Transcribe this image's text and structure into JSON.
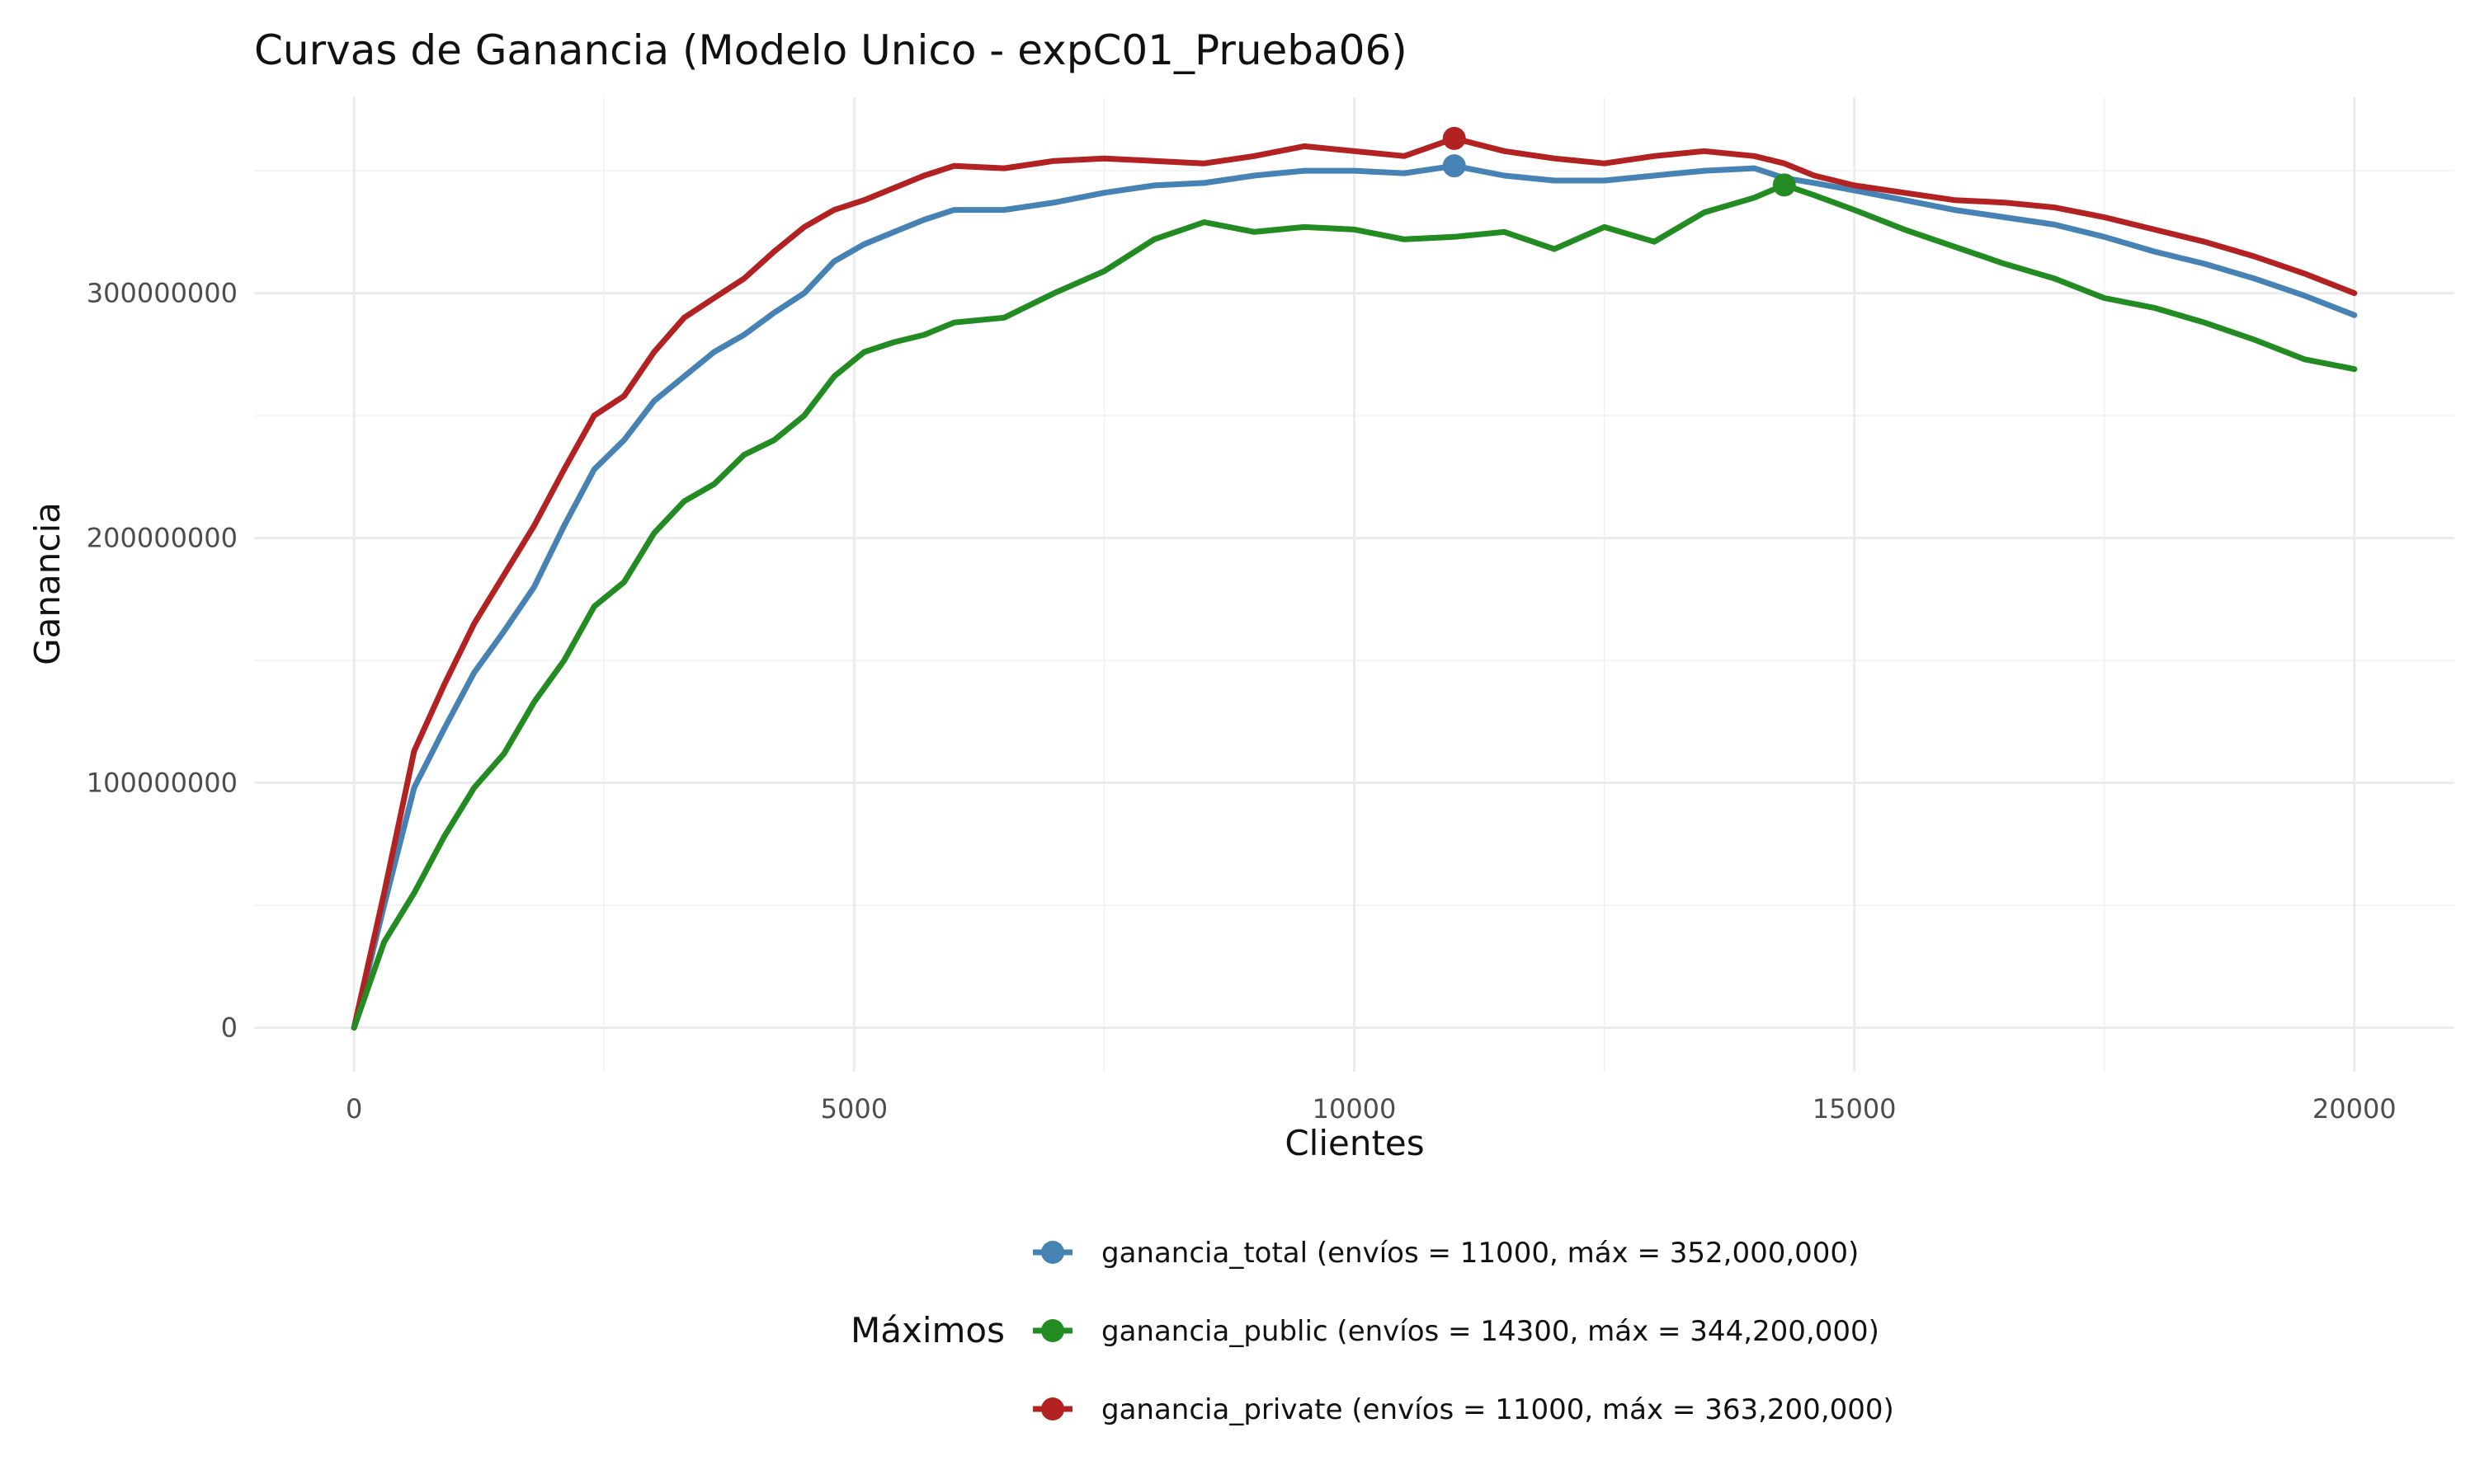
{
  "chart_data": {
    "type": "line",
    "title": "Curvas de Ganancia (Modelo Unico - expC01_Prueba06)",
    "xlabel": "Clientes",
    "ylabel": "Ganancia",
    "xlim": [
      -1000,
      21000
    ],
    "ylim": [
      -18000000,
      380000000
    ],
    "xticks": [
      0,
      5000,
      10000,
      15000,
      20000
    ],
    "xtick_labels": [
      "0",
      "5000",
      "10000",
      "15000",
      "20000"
    ],
    "yticks": [
      0,
      100000000,
      200000000,
      300000000
    ],
    "ytick_labels": [
      "0",
      "100000000",
      "200000000",
      "300000000"
    ],
    "grid": true,
    "legend": {
      "title": "Máximos",
      "placement": "bottom",
      "entries": [
        "ganancia_total (envíos = 11000, máx = 352,000,000)",
        "ganancia_public (envíos = 14300, máx = 344,200,000)",
        "ganancia_private (envíos = 11000, máx = 363,200,000)"
      ]
    },
    "series": [
      {
        "name": "ganancia_total",
        "color": "#4682b4",
        "max_point": {
          "x": 11000,
          "y": 352000000
        },
        "x": [
          0,
          300,
          600,
          900,
          1200,
          1500,
          1800,
          2100,
          2400,
          2700,
          3000,
          3300,
          3600,
          3900,
          4200,
          4500,
          4800,
          5100,
          5400,
          5700,
          6000,
          6500,
          7000,
          7500,
          8000,
          8500,
          9000,
          9500,
          10000,
          10500,
          11000,
          11500,
          12000,
          12500,
          13000,
          13500,
          14000,
          14300,
          14600,
          15000,
          15500,
          16000,
          16500,
          17000,
          17500,
          18000,
          18500,
          19000,
          19500,
          20000
        ],
        "y": [
          0,
          50000000,
          98000000,
          122000000,
          145000000,
          162000000,
          180000000,
          205000000,
          228000000,
          240000000,
          256000000,
          266000000,
          276000000,
          283000000,
          292000000,
          300000000,
          313000000,
          320000000,
          325000000,
          330000000,
          334000000,
          334000000,
          337000000,
          341000000,
          344000000,
          345000000,
          348000000,
          350000000,
          350000000,
          349000000,
          352000000,
          348000000,
          346000000,
          346000000,
          348000000,
          350000000,
          351000000,
          347000000,
          345000000,
          342000000,
          338000000,
          334000000,
          331000000,
          328000000,
          323000000,
          317000000,
          312000000,
          306000000,
          299000000,
          291000000
        ]
      },
      {
        "name": "ganancia_public",
        "color": "#228b22",
        "max_point": {
          "x": 14300,
          "y": 344200000
        },
        "x": [
          0,
          300,
          600,
          900,
          1200,
          1500,
          1800,
          2100,
          2400,
          2700,
          3000,
          3300,
          3600,
          3900,
          4200,
          4500,
          4800,
          5100,
          5400,
          5700,
          6000,
          6500,
          7000,
          7500,
          8000,
          8500,
          9000,
          9500,
          10000,
          10500,
          11000,
          11500,
          12000,
          12500,
          13000,
          13500,
          14000,
          14300,
          14600,
          15000,
          15500,
          16000,
          16500,
          17000,
          17500,
          18000,
          18500,
          19000,
          19500,
          20000
        ],
        "y": [
          0,
          35000000,
          55000000,
          78000000,
          98000000,
          112000000,
          133000000,
          150000000,
          172000000,
          182000000,
          202000000,
          215000000,
          222000000,
          234000000,
          240000000,
          250000000,
          266000000,
          276000000,
          280000000,
          283000000,
          288000000,
          290000000,
          300000000,
          309000000,
          322000000,
          329000000,
          325000000,
          327000000,
          326000000,
          322000000,
          323000000,
          325000000,
          318000000,
          327000000,
          321000000,
          333000000,
          339000000,
          344200000,
          340000000,
          334000000,
          326000000,
          319000000,
          312000000,
          306000000,
          298000000,
          294000000,
          288000000,
          281000000,
          273000000,
          269000000
        ]
      },
      {
        "name": "ganancia_private",
        "color": "#b22222",
        "max_point": {
          "x": 11000,
          "y": 363200000
        },
        "x": [
          0,
          300,
          600,
          900,
          1200,
          1500,
          1800,
          2100,
          2400,
          2700,
          3000,
          3300,
          3600,
          3900,
          4200,
          4500,
          4800,
          5100,
          5400,
          5700,
          6000,
          6500,
          7000,
          7500,
          8000,
          8500,
          9000,
          9500,
          10000,
          10500,
          11000,
          11500,
          12000,
          12500,
          13000,
          13500,
          14000,
          14300,
          14600,
          15000,
          15500,
          16000,
          16500,
          17000,
          17500,
          18000,
          18500,
          19000,
          19500,
          20000
        ],
        "y": [
          0,
          55000000,
          113000000,
          140000000,
          165000000,
          185000000,
          205000000,
          228000000,
          250000000,
          258000000,
          276000000,
          290000000,
          298000000,
          306000000,
          317000000,
          327000000,
          334000000,
          338000000,
          343000000,
          348000000,
          352000000,
          351000000,
          354000000,
          355000000,
          354000000,
          353000000,
          356000000,
          360000000,
          358000000,
          356000000,
          363200000,
          358000000,
          355000000,
          353000000,
          356000000,
          358000000,
          356000000,
          353000000,
          348000000,
          344000000,
          341000000,
          338000000,
          337000000,
          335000000,
          331000000,
          326000000,
          321000000,
          315000000,
          308000000,
          300000000
        ]
      }
    ]
  }
}
